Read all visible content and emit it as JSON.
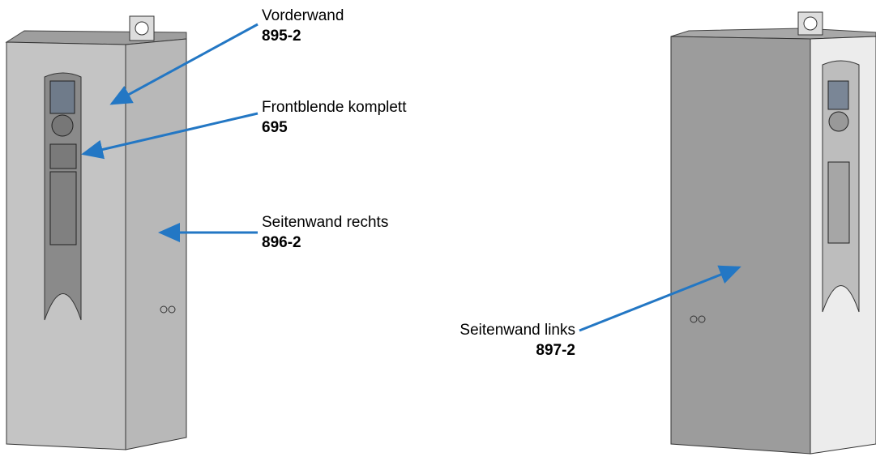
{
  "labels": [
    {
      "name": "Vorderwand",
      "part": "895-2"
    },
    {
      "name": "Frontblende komplett",
      "part": "695"
    },
    {
      "name": "Seitenwand rechts",
      "part": "896-2"
    },
    {
      "name": "Seitenwand links",
      "part": "897-2"
    }
  ]
}
